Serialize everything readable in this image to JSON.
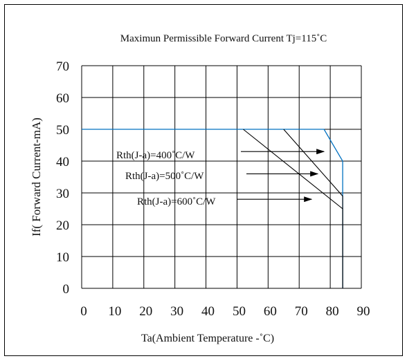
{
  "chart_data": {
    "type": "line",
    "title": "Maximun Permissible Forward Current Tj=115˚C",
    "xlabel": "Ta(Ambient Temperature -˚C)",
    "ylabel": "If( Forward Current-mA)",
    "xlim": [
      0,
      90
    ],
    "ylim": [
      0,
      70
    ],
    "x_ticks": [
      0,
      10,
      20,
      30,
      40,
      50,
      60,
      70,
      80,
      90
    ],
    "x_tick_labels": [
      "0",
      "10",
      "20",
      "30",
      "40",
      "50",
      "60",
      "70",
      "80",
      "90"
    ],
    "y_ticks": [
      0,
      10,
      20,
      30,
      40,
      50,
      60,
      70
    ],
    "y_tick_labels": [
      "0",
      "10",
      "20",
      "30",
      "40",
      "50",
      "60",
      "70"
    ],
    "grid": true,
    "x_grid": [
      0,
      10,
      20,
      30,
      40,
      50,
      60,
      70,
      80,
      90
    ],
    "series": [
      {
        "name": "Rth(J-a)=400˚C/W",
        "color": "#0070c0",
        "x": [
          0,
          78,
          84,
          84
        ],
        "y": [
          50,
          50,
          40,
          0
        ]
      },
      {
        "name": "Rth(J-a)=500˚C/W",
        "color": "#000000",
        "x": [
          65,
          84,
          84
        ],
        "y": [
          50,
          29,
          0
        ]
      },
      {
        "name": "Rth(J-a)=600˚C/W",
        "color": "#000000",
        "x": [
          52,
          84,
          84
        ],
        "y": [
          50,
          25,
          0
        ]
      }
    ],
    "annotations": [
      {
        "text": "Rth(J-a)=400˚C/W",
        "arrow_to": [
          78,
          43
        ]
      },
      {
        "text": "Rth(J-a)=500˚C/W",
        "arrow_to": [
          76,
          36
        ]
      },
      {
        "text": "Rth(J-a)=600˚C/W",
        "arrow_to": [
          74,
          28
        ]
      }
    ]
  }
}
